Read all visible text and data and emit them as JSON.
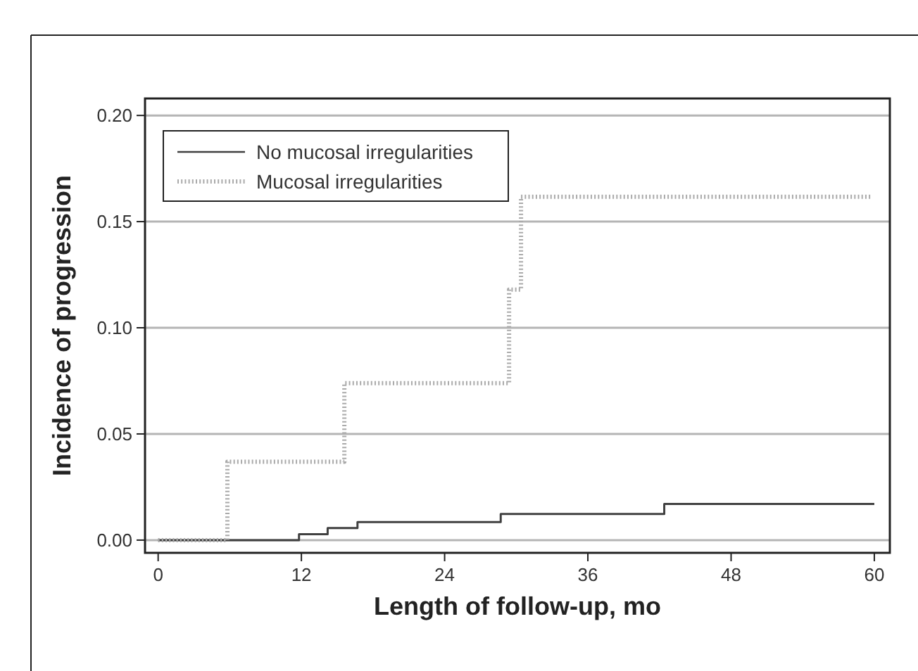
{
  "chart_data": {
    "type": "step",
    "xlabel": "Length of follow-up, mo",
    "ylabel": "Incidence of progression",
    "xlim": [
      -1.1,
      61.3
    ],
    "xticks": [
      0,
      12,
      24,
      36,
      48,
      60
    ],
    "ylim": [
      -0.006,
      0.208
    ],
    "yticks": [
      {
        "value": 0,
        "label": "0.00"
      },
      {
        "value": 0.05,
        "label": "0.05"
      },
      {
        "value": 0.1,
        "label": "0.10"
      },
      {
        "value": 0.15,
        "label": "0.15"
      },
      {
        "value": 0.2,
        "label": "0.20"
      }
    ],
    "grid": "y",
    "legend": "top left",
    "series": [
      {
        "name": "No mucosal irregularities",
        "color": "#404040",
        "line_style": "solid",
        "x": [
          0,
          11.8,
          14.2,
          16.7,
          28.7,
          42.4,
          60
        ],
        "values": [
          0,
          0.0028,
          0.0057,
          0.0085,
          0.0123,
          0.017,
          0.017
        ]
      },
      {
        "name": "Mucosal irregularities",
        "color": "#aaaaaa",
        "line_style": "dotted",
        "x": [
          0,
          5.8,
          15.6,
          29.4,
          30.4,
          59.8
        ],
        "values": [
          0,
          0.0369,
          0.0739,
          0.118,
          0.1617,
          0.1617
        ]
      }
    ]
  }
}
